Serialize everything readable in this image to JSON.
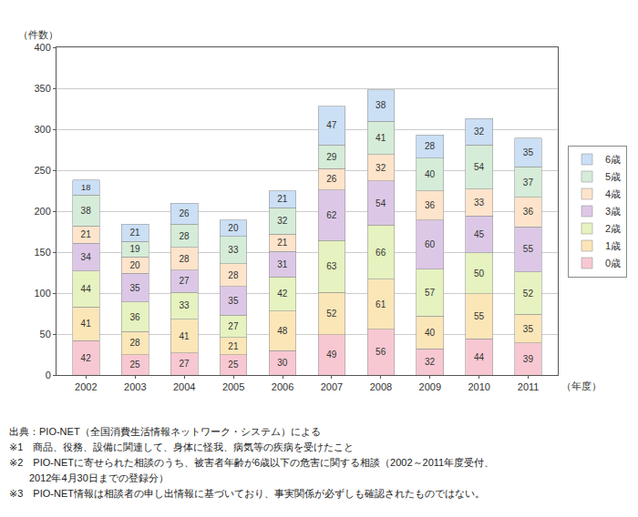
{
  "chart_data": {
    "type": "bar",
    "stacked": true,
    "data_labels": true,
    "grid": true,
    "legend": "right",
    "ylabel": "（件数）",
    "xlabel": "（年度）",
    "categories": [
      "2002",
      "2003",
      "2004",
      "2005",
      "2006",
      "2007",
      "2008",
      "2009",
      "2010",
      "2011"
    ],
    "series": [
      {
        "name": "0歳",
        "color": "#f8c8d2",
        "values": [
          42,
          25,
          27,
          25,
          30,
          49,
          56,
          32,
          44,
          39
        ]
      },
      {
        "name": "1歳",
        "color": "#fbe6b8",
        "values": [
          41,
          28,
          41,
          21,
          48,
          52,
          61,
          40,
          55,
          35
        ]
      },
      {
        "name": "2歳",
        "color": "#e6f2bf",
        "values": [
          44,
          36,
          33,
          27,
          42,
          63,
          66,
          57,
          50,
          52
        ]
      },
      {
        "name": "3歳",
        "color": "#dcc8e6",
        "values": [
          34,
          35,
          27,
          35,
          31,
          62,
          54,
          60,
          45,
          55
        ]
      },
      {
        "name": "4歳",
        "color": "#fde4cb",
        "values": [
          21,
          20,
          28,
          28,
          21,
          26,
          32,
          36,
          33,
          36
        ]
      },
      {
        "name": "5歳",
        "color": "#d5ecd8",
        "values": [
          38,
          19,
          28,
          33,
          32,
          29,
          41,
          40,
          54,
          37
        ]
      },
      {
        "name": "6歳",
        "color": "#cbdff5",
        "values": [
          18,
          21,
          26,
          20,
          21,
          47,
          38,
          28,
          32,
          35
        ]
      }
    ],
    "ylim": [
      0,
      400
    ],
    "yticks": [
      0,
      50,
      100,
      150,
      200,
      250,
      300,
      350,
      400
    ],
    "annotations": [
      "出典：PIO-NET（全国消費生活情報ネットワーク・システム）による",
      "※1　商品、役務、設備に関連して、身体に怪我、病気等の疾病を受けたこと",
      "※2　PIO-NETに寄せられた相談のうち、被害者年齢が6歳以下の危害に関する相談（2002～2011年度受付、",
      "　　2012年4月30日までの登録分）",
      "※3　PIO-NET情報は相談者の申し出情報に基づいており、事実関係が必ずしも確認されたものではない。"
    ]
  }
}
